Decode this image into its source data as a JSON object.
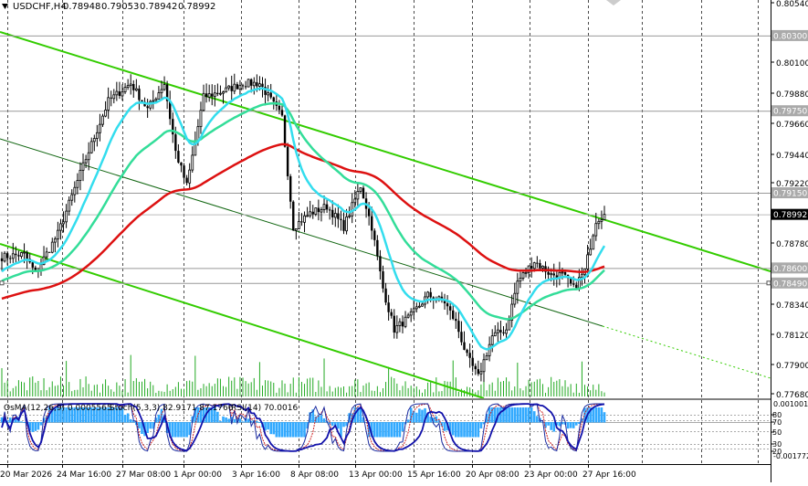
{
  "header": {
    "symbol": "USDCHF,H4",
    "open": "0.78948",
    "high": "0.79053",
    "low": "0.78942",
    "close": "0.78992"
  },
  "indicator_header": {
    "osma": "OsMA(12,26,9) 0.0005565",
    "stoch": "Stoch(5,3,3) 82.9171 87.1766",
    "rsi": "RSI(14) 70.0016"
  },
  "price_axis": {
    "ticks": [
      "0.80540",
      "0.80100",
      "0.79880",
      "0.79660",
      "0.79440",
      "0.79220",
      "0.78780",
      "0.78340",
      "0.78120",
      "0.77900",
      "0.77680"
    ],
    "boxed_levels": [
      {
        "label": "0.80300",
        "style": "gray"
      },
      {
        "label": "0.79750",
        "style": "gray"
      },
      {
        "label": "0.79150",
        "style": "gray"
      },
      {
        "label": "0.78992",
        "style": "current"
      },
      {
        "label": "0.78600",
        "style": "gray"
      },
      {
        "label": "0.78490",
        "style": "gray"
      }
    ]
  },
  "indicator_axis": {
    "top": "0.001001",
    "bottom": "-0.001772",
    "levels": [
      "80",
      "70",
      "50",
      "30",
      "20"
    ]
  },
  "time_axis": [
    "20 Mar 2026",
    "24 Mar 16:00",
    "27 Mar 08:00",
    "1 Apr 00:00",
    "3 Apr 16:00",
    "8 Apr 08:00",
    "13 Apr 00:00",
    "15 Apr 16:00",
    "20 Apr 08:00",
    "23 Apr 00:00",
    "27 Apr 16:00"
  ],
  "colors": {
    "bull": "#000000",
    "bear": "#000000",
    "ma_fast": "#33ddee",
    "ma_mid": "#33dd99",
    "ma_slow": "#dd1111",
    "channel": "#33cc00",
    "volume": "#22aa22",
    "osma": "#33aaff",
    "stoch_main": "#1a2aa0",
    "stoch_signal": "#cc2222",
    "rsi": "#1111aa"
  }
}
